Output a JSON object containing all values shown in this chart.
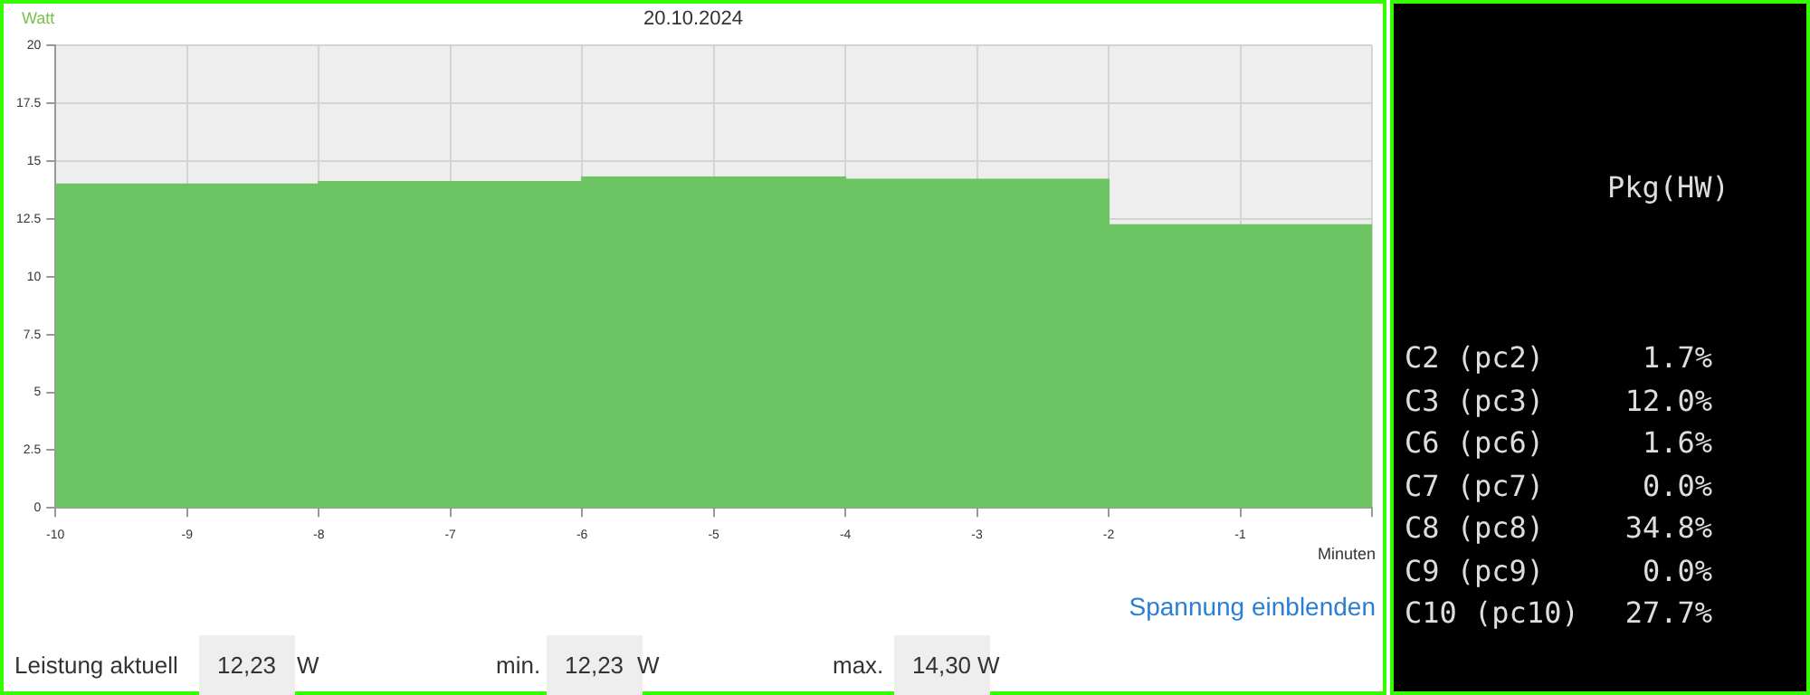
{
  "chart_data": [
    {
      "type": "area",
      "title": "20.10.2024",
      "ylabel": "Watt",
      "xlabel": "Minuten",
      "x": [
        -10,
        -8,
        -8,
        -6,
        -6,
        -4,
        -4,
        -2,
        -2,
        0
      ],
      "series": [
        {
          "color": "#6cc462",
          "values": [
            14.0,
            14.0,
            14.1,
            14.1,
            14.3,
            14.3,
            14.2,
            14.2,
            12.23,
            12.23
          ]
        }
      ],
      "xlim": [
        -10,
        0
      ],
      "xticks": [
        -10,
        -9,
        -8,
        -7,
        -6,
        -5,
        -4,
        -3,
        -2,
        -1,
        {
          "value": 0,
          "label": null
        }
      ],
      "ylim": [
        0,
        20
      ],
      "yticks": [
        0,
        2.5,
        5,
        7.5,
        10,
        12.5,
        15,
        17.5,
        20
      ],
      "grid": true,
      "marker": "none",
      "annotations": [
        "Spannung einblenden",
        "Leistung aktuell",
        "12,23",
        "W",
        "min.",
        "12,23",
        "W",
        "max.",
        "14,30",
        "W"
      ]
    },
    {
      "type": "other",
      "title": "Pkg(HW)",
      "annotations": [
        "C2 (pc2)",
        "1.7%",
        "C3 (pc3)",
        "12.0%",
        "C6 (pc6)",
        "1.6%",
        "C7 (pc7)",
        "0.0%",
        "C8 (pc8)",
        "34.8%",
        "C9 (pc9)",
        "0.0%",
        "C10 (pc10)",
        "27.7%"
      ]
    }
  ]
}
